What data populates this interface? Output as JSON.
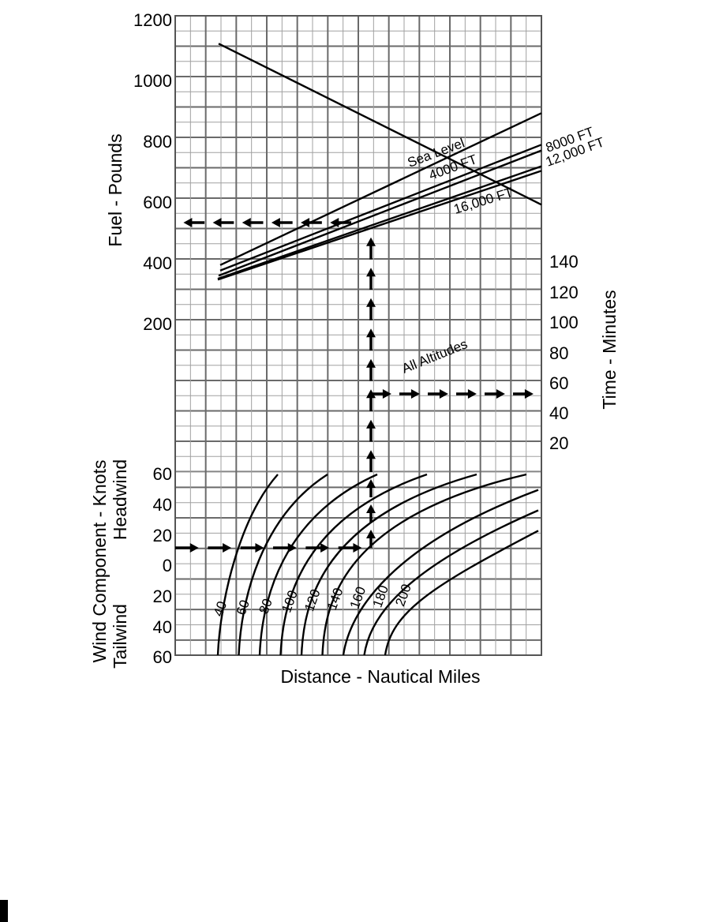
{
  "chart_data": {
    "type": "line",
    "panels": {
      "fuel": {
        "ylabel": "Fuel - Pounds",
        "yticks": [
          "1200",
          "1000",
          "800",
          "600",
          "400",
          "200"
        ],
        "series": [
          {
            "name": "Sea Level",
            "points": [
              [
                385,
                133.5
              ],
              [
                885,
                139
              ]
            ]
          },
          {
            "name": "4000 FT",
            "points": [
              [
                367,
                142
              ],
              [
                781,
                170
              ]
            ]
          },
          {
            "name": "8000 FT",
            "points": [
              [
                350,
                147.5
              ],
              [
                762,
                175.5
              ]
            ]
          },
          {
            "name": "12,000 FT",
            "points": [
              [
                340,
                148.5
              ],
              [
                710,
                177
              ]
            ]
          },
          {
            "name": "16,000 FT",
            "points": [
              [
                337,
                153.5
              ],
              [
                695,
                181
              ]
            ]
          }
        ]
      },
      "time": {
        "ylabel": "Time - Minutes",
        "yticks": [
          "140",
          "120",
          "100",
          "80",
          "60",
          "40",
          "20"
        ],
        "series": [
          {
            "name": "All Altitudes",
            "points": [
              [
                17,
                140
              ],
              [
                108,
                177
              ]
            ]
          }
        ]
      },
      "wind": {
        "ylabel_main": "Wind Component - Knots",
        "ylabel_headwind": "Headwind",
        "ylabel_tailwind": "Tailwind",
        "yticks": [
          "60",
          "40",
          "20",
          "0",
          "20",
          "40",
          "60"
        ],
        "distance_labels": [
          "40",
          "60",
          "80",
          "100",
          "120",
          "140",
          "160",
          "180",
          "200"
        ]
      }
    },
    "xlabel": "Distance - Nautical Miles",
    "example": {
      "wind_knots": 10,
      "distance_nm": 160,
      "fuel_lbs": 525,
      "time_min": 52
    }
  }
}
